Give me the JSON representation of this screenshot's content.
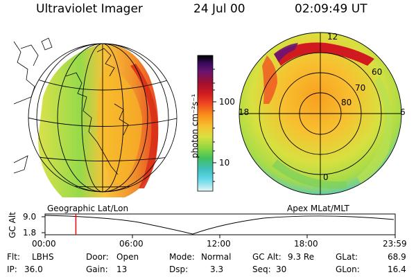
{
  "header": {
    "title": "Ultraviolet Imager",
    "date": "24 Jul 00",
    "time": "02:09:49 UT"
  },
  "colorbar": {
    "unit_label": "photon cm⁻²s⁻¹",
    "tick_labels": [
      "100",
      "10"
    ],
    "colors": [
      "#000000",
      "#3a0a60",
      "#6a1470",
      "#a01030",
      "#d01a20",
      "#f04a20",
      "#f8901a",
      "#f8c030",
      "#d8e040",
      "#90d840",
      "#40c060",
      "#40c0c0",
      "#60d8e8",
      "#a8e8f0",
      "#e8f4f8"
    ]
  },
  "polar_plot": {
    "mlt_labels": {
      "top": "12",
      "left": "18",
      "right": "6",
      "bottom": "0"
    },
    "lat_labels": [
      "60",
      "70",
      "80"
    ]
  },
  "timeline": {
    "left_label": "Geographic Lat/Lon",
    "right_label": "Apex MLat/MLT",
    "ylabel": "GC Alt",
    "y_ticks": [
      "9.0",
      "1.8"
    ],
    "x_ticks": [
      "00:00",
      "06:00",
      "12:00",
      "18:00",
      "23:59"
    ],
    "marker_time_fraction": 0.088,
    "marker_color": "#ff0000"
  },
  "status": {
    "filter_label": "Flt:",
    "filter_value": "LBHS",
    "ip_label": "IP:",
    "ip_value": "36.0",
    "door_label": "Door:",
    "door_value": "Open",
    "gain_label": "Gain:",
    "gain_value": "13",
    "mode_label": "Mode:",
    "mode_value": "Normal",
    "dsp_label": "Dsp:",
    "dsp_value": "3.3",
    "gcalt_label": "GC Alt:",
    "gcalt_value": "9.3 Re",
    "seq_label": "Seq:",
    "seq_value": "30",
    "glat_label": "GLat:",
    "glat_value": "68.9",
    "glon_label": "GLon:",
    "glon_value": "16.4"
  }
}
